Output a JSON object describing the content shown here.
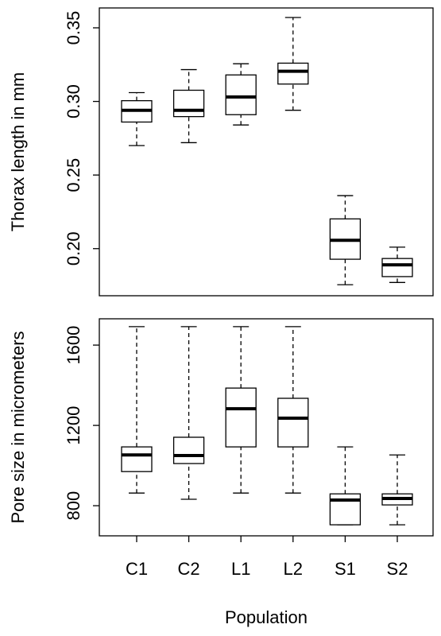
{
  "chart_data": [
    {
      "type": "box",
      "ylabel": "Thorax length in mm",
      "ylim": [
        0.168,
        0.3635
      ],
      "yticks": [
        {
          "value": 0.2,
          "label": "0.20"
        },
        0.25,
        {
          "value": 0.3,
          "label": "0.30"
        },
        0.35
      ],
      "min": [
        0.27,
        0.272,
        0.284,
        0.294,
        0.1755,
        0.177
      ],
      "q1": [
        0.286,
        0.2897,
        0.291,
        0.3118,
        0.1928,
        0.181
      ],
      "median": [
        0.294,
        0.294,
        0.303,
        0.3205,
        0.2057,
        0.189
      ],
      "q3": [
        0.3005,
        0.3076,
        0.318,
        0.326,
        0.2202,
        0.1933
      ],
      "max": [
        0.306,
        0.3216,
        0.3256,
        0.357,
        0.236,
        0.201
      ]
    },
    {
      "type": "box",
      "ylabel": "Pore size in micrometers",
      "xlabel": "Population",
      "categories": [
        "C1",
        "C2",
        "L1",
        "L2",
        "S1",
        "S2"
      ],
      "ylim": [
        650,
        1731
      ],
      "yticks": [
        800,
        1200,
        1600
      ],
      "min": [
        863,
        832,
        863,
        863,
        705,
        705
      ],
      "q1": [
        970,
        1010,
        1093,
        1093,
        705,
        804
      ],
      "median": [
        1053,
        1050,
        1283,
        1236,
        828,
        836
      ],
      "q3": [
        1093,
        1141,
        1386,
        1335,
        859,
        859
      ],
      "max": [
        1692,
        1692,
        1692,
        1692,
        1093,
        1053
      ]
    }
  ]
}
